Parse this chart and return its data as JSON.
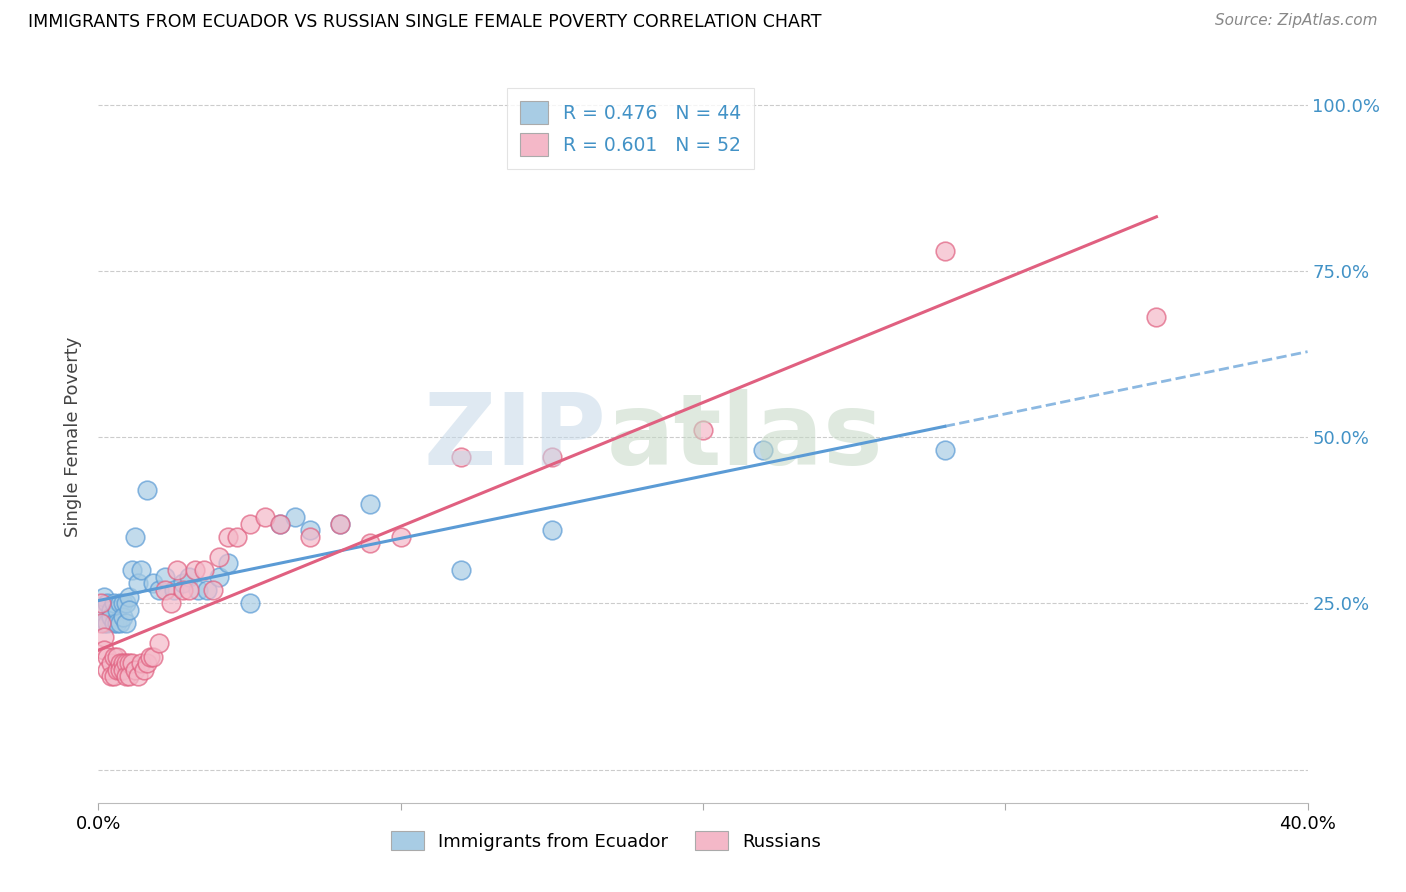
{
  "title": "IMMIGRANTS FROM ECUADOR VS RUSSIAN SINGLE FEMALE POVERTY CORRELATION CHART",
  "source": "Source: ZipAtlas.com",
  "ylabel": "Single Female Poverty",
  "ytick_labels": [
    "",
    "25.0%",
    "50.0%",
    "75.0%",
    "100.0%"
  ],
  "legend_r1": "R = 0.476",
  "legend_n1": "N = 44",
  "legend_r2": "R = 0.601",
  "legend_n2": "N = 52",
  "color_ecuador": "#a8cce4",
  "color_russia": "#f4b8c8",
  "color_ecuador_line": "#5b9bd5",
  "color_russia_line": "#e06080",
  "background_color": "#ffffff",
  "ecuador_x": [
    0.001,
    0.002,
    0.002,
    0.003,
    0.003,
    0.004,
    0.004,
    0.005,
    0.005,
    0.006,
    0.006,
    0.007,
    0.007,
    0.008,
    0.008,
    0.009,
    0.009,
    0.01,
    0.01,
    0.011,
    0.012,
    0.013,
    0.014,
    0.016,
    0.018,
    0.02,
    0.022,
    0.025,
    0.028,
    0.03,
    0.033,
    0.036,
    0.04,
    0.043,
    0.05,
    0.06,
    0.065,
    0.07,
    0.08,
    0.09,
    0.12,
    0.15,
    0.22,
    0.28
  ],
  "ecuador_y": [
    0.24,
    0.26,
    0.22,
    0.25,
    0.22,
    0.24,
    0.23,
    0.25,
    0.22,
    0.24,
    0.22,
    0.25,
    0.22,
    0.25,
    0.23,
    0.25,
    0.22,
    0.26,
    0.24,
    0.3,
    0.35,
    0.28,
    0.3,
    0.42,
    0.28,
    0.27,
    0.29,
    0.27,
    0.28,
    0.29,
    0.27,
    0.27,
    0.29,
    0.31,
    0.25,
    0.37,
    0.38,
    0.36,
    0.37,
    0.4,
    0.3,
    0.36,
    0.48,
    0.48
  ],
  "russia_x": [
    0.001,
    0.001,
    0.002,
    0.002,
    0.003,
    0.003,
    0.004,
    0.004,
    0.005,
    0.005,
    0.006,
    0.006,
    0.007,
    0.007,
    0.008,
    0.008,
    0.009,
    0.009,
    0.01,
    0.01,
    0.011,
    0.012,
    0.013,
    0.014,
    0.015,
    0.016,
    0.017,
    0.018,
    0.02,
    0.022,
    0.024,
    0.026,
    0.028,
    0.03,
    0.032,
    0.035,
    0.038,
    0.04,
    0.043,
    0.046,
    0.05,
    0.055,
    0.06,
    0.07,
    0.08,
    0.09,
    0.1,
    0.12,
    0.15,
    0.2,
    0.28,
    0.35
  ],
  "russia_y": [
    0.25,
    0.22,
    0.2,
    0.18,
    0.17,
    0.15,
    0.16,
    0.14,
    0.17,
    0.14,
    0.15,
    0.17,
    0.16,
    0.15,
    0.16,
    0.15,
    0.16,
    0.14,
    0.16,
    0.14,
    0.16,
    0.15,
    0.14,
    0.16,
    0.15,
    0.16,
    0.17,
    0.17,
    0.19,
    0.27,
    0.25,
    0.3,
    0.27,
    0.27,
    0.3,
    0.3,
    0.27,
    0.32,
    0.35,
    0.35,
    0.37,
    0.38,
    0.37,
    0.35,
    0.37,
    0.34,
    0.35,
    0.47,
    0.47,
    0.51,
    0.78,
    0.68
  ],
  "xlim": [
    0.0,
    0.4
  ],
  "ylim": [
    -0.05,
    1.05
  ],
  "ytick_pos": [
    0.0,
    0.25,
    0.5,
    0.75,
    1.0
  ]
}
